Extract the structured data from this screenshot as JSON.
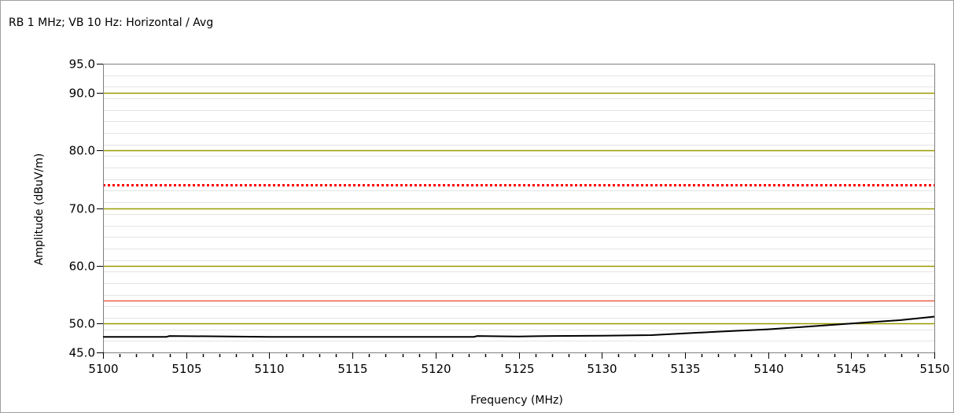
{
  "chart_data": {
    "type": "line",
    "title": "RB 1 MHz; VB 10 Hz: Horizontal / Avg",
    "xlabel": "Frequency (MHz)",
    "ylabel": "Amplitude (dBuV/m)",
    "xlim": [
      5100,
      5150
    ],
    "ylim": [
      45,
      95
    ],
    "x_ticks": [
      5100,
      5105,
      5110,
      5115,
      5120,
      5125,
      5130,
      5135,
      5140,
      5145,
      5150
    ],
    "y_ticks": [
      "95.0",
      "90.0",
      "80.0",
      "70.0",
      "60.0",
      "50.0",
      "45.0"
    ],
    "y_tick_values": [
      95,
      90,
      80,
      70,
      60,
      50,
      45
    ],
    "major_grid_y": [
      50,
      60,
      70,
      80,
      90
    ],
    "minor_grid": true,
    "limit_lines": [
      {
        "y": 74,
        "color": "#ff0000",
        "style": "dotted"
      },
      {
        "y": 54,
        "color": "#f05a4a",
        "style": "solid"
      }
    ],
    "series": [
      {
        "color": "#000000",
        "x": [
          5100,
          5103.8,
          5104,
          5110,
          5115,
          5122.3,
          5122.5,
          5125,
          5126,
          5127,
          5130,
          5133,
          5135,
          5137,
          5140,
          5142,
          5144,
          5146,
          5148,
          5150
        ],
        "y": [
          47.7,
          47.7,
          47.85,
          47.7,
          47.7,
          47.7,
          47.85,
          47.75,
          47.8,
          47.85,
          47.9,
          48.0,
          48.3,
          48.6,
          49.0,
          49.4,
          49.8,
          50.2,
          50.6,
          51.2
        ]
      }
    ]
  },
  "colors": {
    "axis": "#808080",
    "major_grid": "#9a9a00",
    "minor_grid": "#e4e4e4"
  }
}
